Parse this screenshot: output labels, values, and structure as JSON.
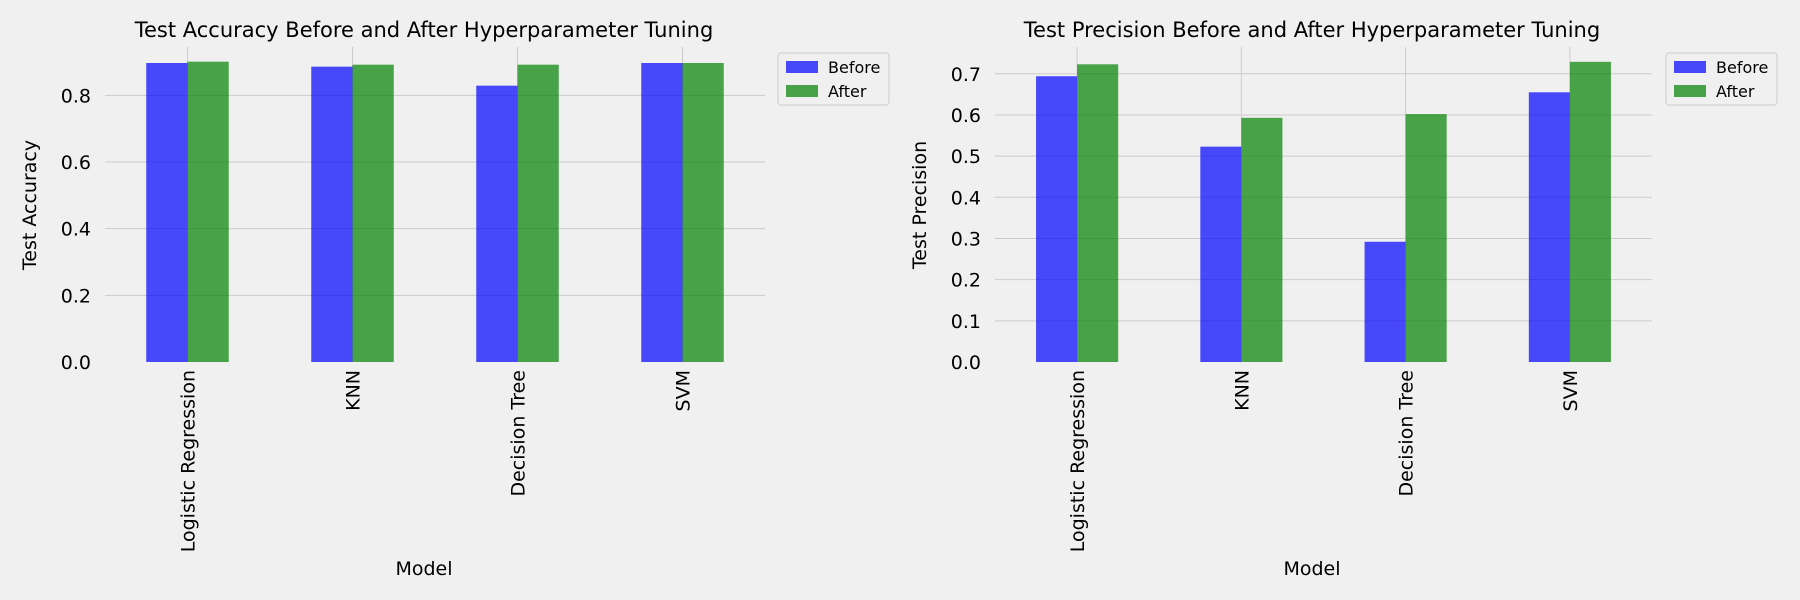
{
  "chart_data": [
    {
      "type": "bar",
      "title": "Test Accuracy Before and After Hyperparameter Tuning",
      "xlabel": "Model",
      "ylabel": "Test Accuracy",
      "categories": [
        "Logistic Regression",
        "KNN",
        "Decision Tree",
        "SVM"
      ],
      "series": [
        {
          "name": "Before",
          "values": [
            0.897,
            0.886,
            0.829,
            0.897
          ],
          "color": "#0000ff"
        },
        {
          "name": "After",
          "values": [
            0.901,
            0.892,
            0.892,
            0.897
          ],
          "color": "#008000"
        }
      ],
      "ylim": [
        0,
        0.945
      ],
      "yticks": [
        0.0,
        0.2,
        0.4,
        0.6,
        0.8
      ],
      "yticklabels": [
        "0.0",
        "0.2",
        "0.4",
        "0.6",
        "0.8"
      ],
      "grid": true,
      "legend_position": "outside-top-right"
    },
    {
      "type": "bar",
      "title": "Test Precision Before and After Hyperparameter Tuning",
      "xlabel": "Model",
      "ylabel": "Test Precision",
      "categories": [
        "Logistic Regression",
        "KNN",
        "Decision Tree",
        "SVM"
      ],
      "series": [
        {
          "name": "Before",
          "values": [
            0.694,
            0.523,
            0.292,
            0.655
          ],
          "color": "#0000ff"
        },
        {
          "name": "After",
          "values": [
            0.723,
            0.593,
            0.602,
            0.729
          ],
          "color": "#008000"
        }
      ],
      "ylim": [
        0,
        0.765
      ],
      "yticks": [
        0.0,
        0.1,
        0.2,
        0.3,
        0.4,
        0.5,
        0.6,
        0.7
      ],
      "yticklabels": [
        "0.0",
        "0.1",
        "0.2",
        "0.3",
        "0.4",
        "0.5",
        "0.6",
        "0.7"
      ],
      "grid": true,
      "legend_position": "outside-top-right"
    }
  ]
}
